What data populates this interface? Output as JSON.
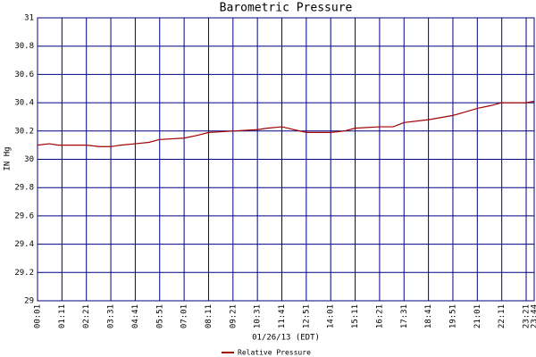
{
  "chart_data": {
    "type": "line",
    "title": "Barometric Pressure",
    "x_label": "01/26/13 (EDT)",
    "y_label": "IN Hg",
    "xlim": [
      1,
      1424
    ],
    "xticks": [
      {
        "value": 1,
        "label": "00:01"
      },
      {
        "value": 71,
        "label": "01:11"
      },
      {
        "value": 141,
        "label": "02:21"
      },
      {
        "value": 211,
        "label": "03:31"
      },
      {
        "value": 281,
        "label": "04:41"
      },
      {
        "value": 351,
        "label": "05:51"
      },
      {
        "value": 421,
        "label": "07:01"
      },
      {
        "value": 491,
        "label": "08:11"
      },
      {
        "value": 561,
        "label": "09:21"
      },
      {
        "value": 631,
        "label": "10:31"
      },
      {
        "value": 701,
        "label": "11:41"
      },
      {
        "value": 771,
        "label": "12:51"
      },
      {
        "value": 841,
        "label": "14:01"
      },
      {
        "value": 911,
        "label": "15:11"
      },
      {
        "value": 981,
        "label": "16:21"
      },
      {
        "value": 1051,
        "label": "17:31"
      },
      {
        "value": 1121,
        "label": "18:41"
      },
      {
        "value": 1191,
        "label": "19:51"
      },
      {
        "value": 1261,
        "label": "21:01"
      },
      {
        "value": 1331,
        "label": "22:11"
      },
      {
        "value": 1401,
        "label": "23:21"
      },
      {
        "value": 1424,
        "label": "23:44"
      }
    ],
    "ylim": [
      29,
      31
    ],
    "yticks": [
      29,
      29.2,
      29.4,
      29.6,
      29.8,
      30,
      30.2,
      30.4,
      30.6,
      30.8,
      31
    ],
    "grid": true,
    "legend": "bottom",
    "x": [
      1,
      35,
      60,
      71,
      141,
      180,
      211,
      240,
      281,
      320,
      351,
      421,
      460,
      491,
      561,
      631,
      660,
      701,
      735,
      771,
      841,
      880,
      911,
      981,
      1020,
      1051,
      1121,
      1191,
      1220,
      1261,
      1300,
      1331,
      1401,
      1424
    ],
    "series": [
      {
        "name": "Relative Pressure",
        "color": "#a00000",
        "values": [
          30.1,
          30.11,
          30.1,
          30.1,
          30.1,
          30.09,
          30.09,
          30.1,
          30.11,
          30.12,
          30.14,
          30.15,
          30.17,
          30.19,
          30.2,
          30.21,
          30.22,
          30.23,
          30.21,
          30.19,
          30.19,
          30.2,
          30.22,
          30.23,
          30.23,
          30.26,
          30.28,
          30.31,
          30.33,
          30.36,
          30.38,
          30.4,
          30.4,
          30.41
        ]
      }
    ]
  }
}
